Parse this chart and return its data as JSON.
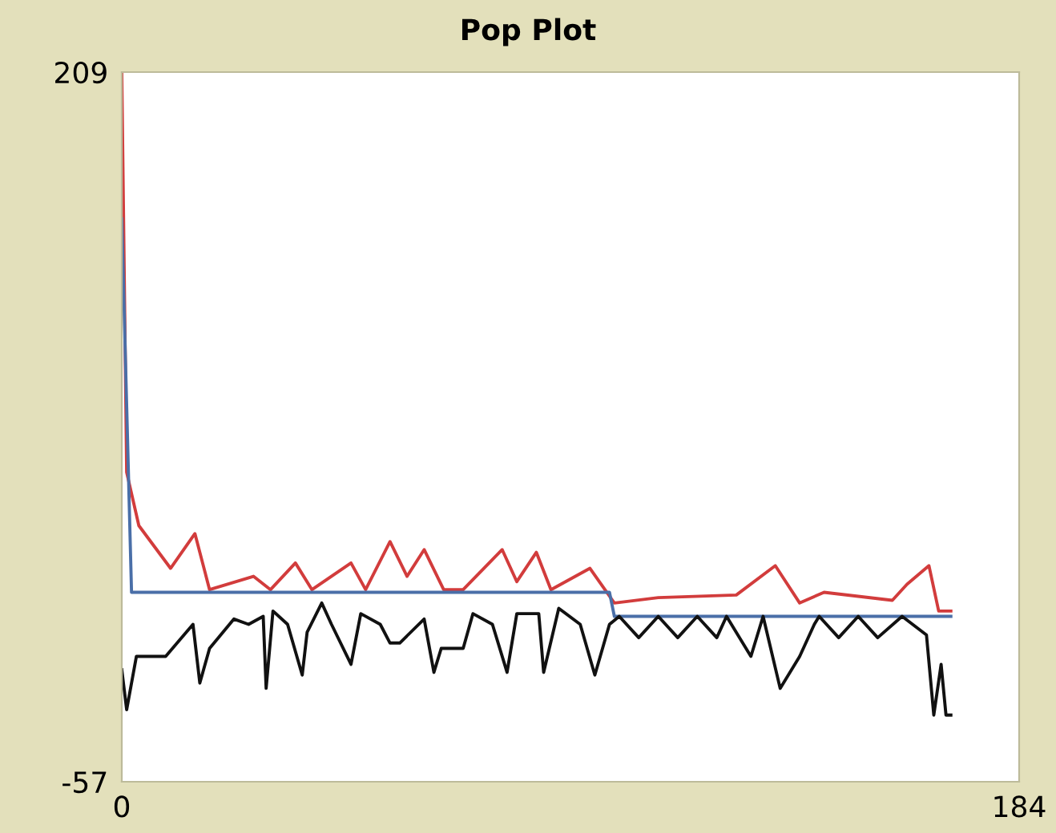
{
  "chart_data": {
    "type": "line",
    "title": "Pop Plot",
    "xlim": [
      0,
      184
    ],
    "xticks": [
      0,
      184
    ],
    "ylim": [
      -57,
      209
    ],
    "yticks": [
      209,
      -57
    ],
    "grid": false,
    "legend": false,
    "series": [
      {
        "color": "#d23c3c",
        "x": [
          0,
          1,
          3.5,
          10,
          15,
          18,
          27,
          30.5,
          35.6,
          39,
          47,
          50,
          55,
          58.5,
          62,
          66,
          70,
          78,
          81,
          85,
          88,
          96,
          101,
          110,
          126,
          134,
          139,
          144,
          158,
          161,
          165.5,
          167.5,
          170
        ],
        "values": [
          209,
          59,
          39,
          23,
          36,
          15,
          20,
          15,
          25,
          15,
          25,
          15,
          33,
          20,
          30,
          15,
          15,
          30,
          18,
          29,
          15,
          23,
          10,
          12,
          13,
          24,
          10,
          14,
          11,
          17,
          24,
          7,
          7
        ]
      },
      {
        "color": "#4a6fa8",
        "x": [
          0,
          2,
          100,
          101,
          170
        ],
        "values": [
          154,
          14,
          14,
          5,
          5
        ]
      },
      {
        "color": "#111111",
        "x": [
          0,
          1,
          3,
          7.6,
          9,
          14.6,
          16,
          18,
          23,
          26,
          29,
          29.6,
          31,
          34,
          37,
          38,
          41,
          43,
          47,
          49,
          53,
          55,
          57,
          62,
          64,
          65.5,
          70,
          72,
          76,
          79,
          81,
          85.5,
          86.5,
          89.6,
          94,
          97,
          100,
          102,
          106,
          110,
          114,
          118,
          122,
          124,
          129,
          131.5,
          135,
          139,
          142,
          143,
          147,
          151,
          155,
          160,
          165,
          166.5,
          168,
          169,
          170
        ],
        "values": [
          -15,
          -30,
          -10,
          -10,
          -10,
          2,
          -20,
          -7,
          4,
          2,
          5,
          -22,
          7,
          2,
          -17,
          -1,
          10,
          2,
          -13,
          6,
          2,
          -5,
          -5,
          4,
          -16,
          -7,
          -7,
          6,
          2,
          -16,
          6,
          6,
          -16,
          8,
          2,
          -17,
          2,
          5,
          -3,
          5,
          -3,
          5,
          -3,
          5,
          -10,
          5,
          -22,
          -10,
          2,
          5,
          -3,
          5,
          -3,
          5,
          -2,
          -32,
          -13,
          -32,
          -32
        ]
      }
    ]
  }
}
